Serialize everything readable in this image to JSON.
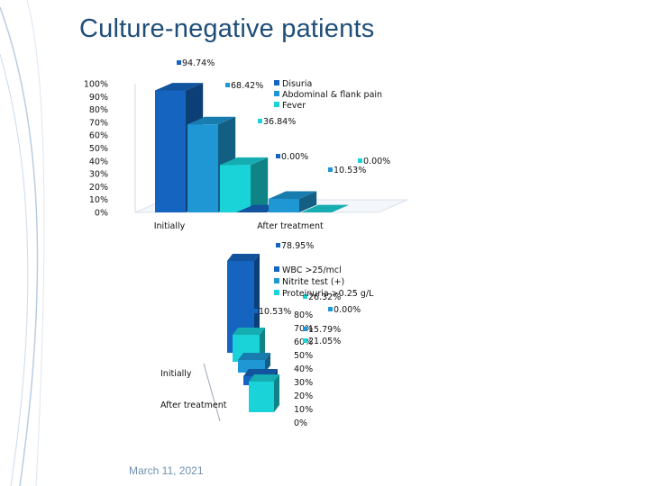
{
  "slide": {
    "title": "Culture-negative patients",
    "date": "March 11, 2021"
  },
  "colors": {
    "title": "#1f4e79",
    "series1": "#1565c0",
    "series2": "#1f97d4",
    "series3": "#1ad3d8",
    "footer": "#6f8fb0"
  },
  "chart_data": [
    {
      "type": "bar",
      "style": "3d-clustered-column",
      "categories": [
        "Initially",
        "After treatment"
      ],
      "series": [
        {
          "name": "Disuria",
          "values": [
            94.74,
            0.0
          ],
          "labels": [
            "94.74%",
            "0.00%"
          ]
        },
        {
          "name": "Abdominal & flank pain",
          "values": [
            68.42,
            10.53
          ],
          "labels": [
            "68.42%",
            "10.53%"
          ]
        },
        {
          "name": "Fever",
          "values": [
            36.84,
            0.0
          ],
          "labels": [
            "36.84%",
            "0.00%"
          ]
        }
      ],
      "yticks": [
        "100%",
        "90%",
        "80%",
        "70%",
        "60%",
        "50%",
        "40%",
        "30%",
        "20%",
        "10%",
        "0%"
      ],
      "ylim": [
        0,
        100
      ],
      "legend": "top-right"
    },
    {
      "type": "bar",
      "style": "3d-clustered-column",
      "categories": [
        "Initially",
        "After treatment"
      ],
      "series": [
        {
          "name": "WBC >25/mcl",
          "values": [
            78.95,
            10.53
          ],
          "labels": [
            "78.95%",
            "10.53%"
          ]
        },
        {
          "name": "Nitrite test (+)",
          "values": [
            15.79,
            0.0
          ],
          "labels": [
            "15.79%",
            "0.00%"
          ]
        },
        {
          "name": "Proteinuria >0.25 g/L",
          "values": [
            21.05,
            26.32
          ],
          "labels": [
            "21.05%",
            "26.32%"
          ]
        }
      ],
      "yticks": [
        "80%",
        "70%",
        "60%",
        "50%",
        "40%",
        "30%",
        "20%",
        "10%",
        "0%"
      ],
      "ylim": [
        0,
        80
      ],
      "legend": "top-right"
    }
  ]
}
